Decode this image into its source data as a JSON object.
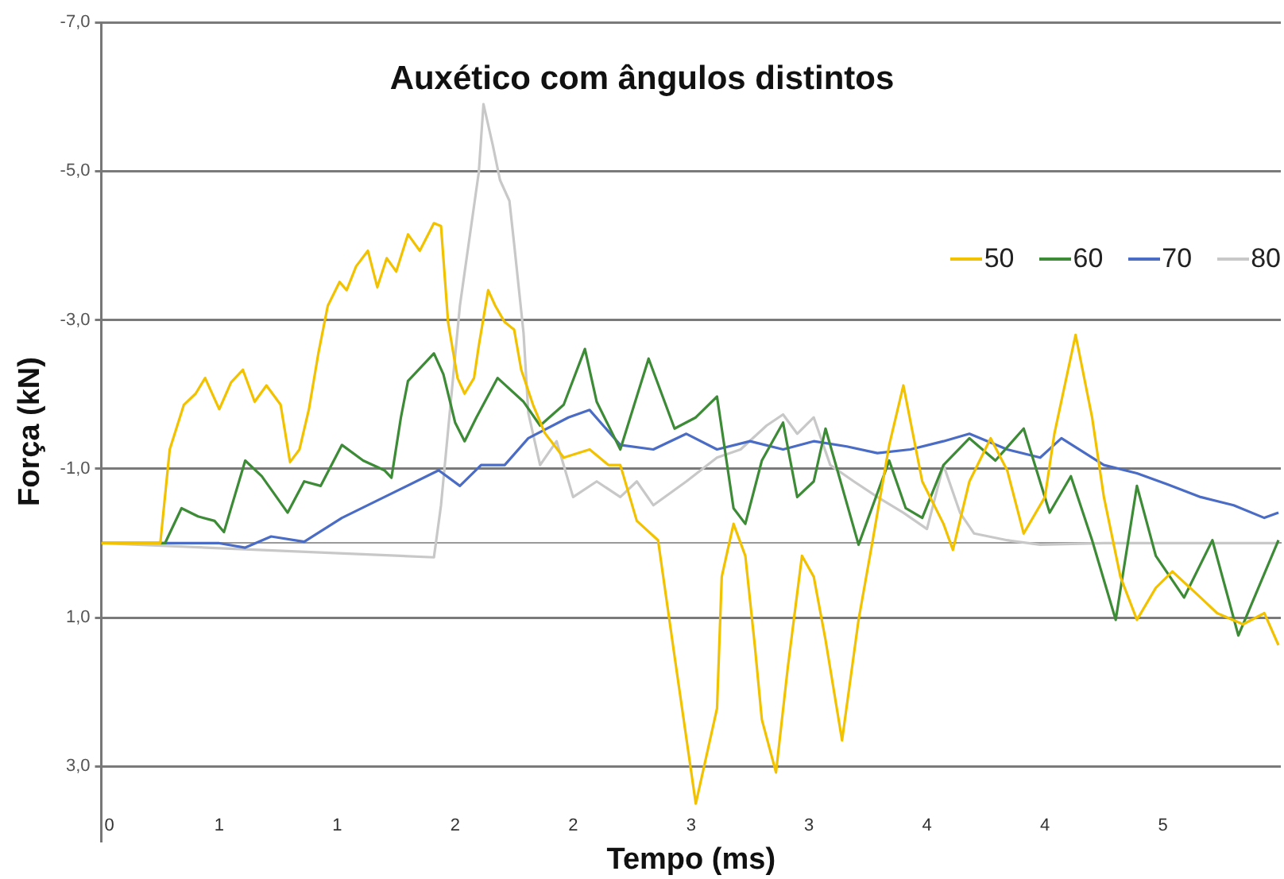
{
  "chart_data": {
    "type": "line",
    "title": "Auxético com ângulos distintos",
    "xlabel": "Tempo (ms)",
    "ylabel": "Força (kN)",
    "xlim": [
      0,
      5
    ],
    "xticks": [
      {
        "value": 0,
        "label": "0"
      },
      {
        "value": 0.5,
        "label": "1"
      },
      {
        "value": 1,
        "label": "1"
      },
      {
        "value": 1.5,
        "label": "2"
      },
      {
        "value": 2,
        "label": "2"
      },
      {
        "value": 2.5,
        "label": "3"
      },
      {
        "value": 3,
        "label": "3"
      },
      {
        "value": 3.5,
        "label": "4"
      },
      {
        "value": 4,
        "label": "4"
      },
      {
        "value": 4.5,
        "label": "5"
      }
    ],
    "ylim": [
      4,
      -7
    ],
    "yticks": [
      {
        "value": -7,
        "label": "-7,0"
      },
      {
        "value": -5,
        "label": "-5,0"
      },
      {
        "value": -3,
        "label": "-3,0"
      },
      {
        "value": -1,
        "label": "-1,0"
      },
      {
        "value": 1,
        "label": "1,0"
      },
      {
        "value": 3,
        "label": "3,0"
      }
    ],
    "grid": "y",
    "legend": "top right",
    "marker": "none",
    "line_style": "solid",
    "series": [
      {
        "name": "50",
        "color": "#f2c200",
        "x": [
          0,
          0.25,
          0.29,
          0.35,
          0.4,
          0.44,
          0.5,
          0.55,
          0.6,
          0.65,
          0.7,
          0.76,
          0.8,
          0.84,
          0.88,
          0.92,
          0.96,
          1.01,
          1.04,
          1.08,
          1.13,
          1.17,
          1.21,
          1.25,
          1.3,
          1.35,
          1.41,
          1.44,
          1.47,
          1.51,
          1.54,
          1.58,
          1.6,
          1.64,
          1.67,
          1.71,
          1.75,
          1.78,
          1.83,
          1.88,
          1.96,
          2.07,
          2.15,
          2.2,
          2.27,
          2.36,
          2.43,
          2.52,
          2.61,
          2.63,
          2.68,
          2.73,
          2.77,
          2.8,
          2.86,
          2.91,
          2.97,
          3.02,
          3.07,
          3.14,
          3.21,
          3.27,
          3.34,
          3.4,
          3.48,
          3.57,
          3.61,
          3.68,
          3.77,
          3.84,
          3.91,
          4.0,
          4.04,
          4.13,
          4.2,
          4.25,
          4.32,
          4.39,
          4.47,
          4.54,
          4.66,
          4.73,
          4.84,
          4.93,
          4.99
        ],
        "values": [
          0,
          0,
          -1.26,
          -1.86,
          -2.01,
          -2.22,
          -1.8,
          -2.16,
          -2.33,
          -1.9,
          -2.12,
          -1.86,
          -1.09,
          -1.26,
          -1.8,
          -2.55,
          -3.19,
          -3.51,
          -3.4,
          -3.72,
          -3.93,
          -3.44,
          -3.83,
          -3.65,
          -4.15,
          -3.93,
          -4.3,
          -4.26,
          -2.97,
          -2.22,
          -2.01,
          -2.22,
          -2.65,
          -3.4,
          -3.19,
          -2.97,
          -2.87,
          -2.33,
          -1.86,
          -1.48,
          -1.15,
          -1.26,
          -1.05,
          -1.05,
          -0.3,
          -0.04,
          1.52,
          3.5,
          2.22,
          0.45,
          -0.26,
          0.17,
          1.37,
          2.37,
          3.08,
          1.67,
          0.17,
          0.45,
          1.3,
          2.65,
          1.03,
          -0.04,
          -1.32,
          -2.12,
          -0.83,
          -0.26,
          0.09,
          -0.83,
          -1.41,
          -0.98,
          -0.13,
          -0.62,
          -1.47,
          -2.8,
          -1.69,
          -0.62,
          0.45,
          1.03,
          0.6,
          0.38,
          0.73,
          0.94,
          1.09,
          0.94,
          1.37
        ]
      },
      {
        "name": "60",
        "color": "#3d8b37",
        "x": [
          0,
          0.27,
          0.34,
          0.41,
          0.48,
          0.52,
          0.61,
          0.68,
          0.79,
          0.86,
          0.93,
          1.02,
          1.11,
          1.2,
          1.23,
          1.27,
          1.3,
          1.41,
          1.45,
          1.5,
          1.54,
          1.59,
          1.68,
          1.79,
          1.86,
          1.96,
          2.05,
          2.1,
          2.2,
          2.32,
          2.43,
          2.52,
          2.61,
          2.68,
          2.73,
          2.8,
          2.89,
          2.95,
          3.02,
          3.07,
          3.21,
          3.34,
          3.41,
          3.48,
          3.57,
          3.68,
          3.79,
          3.91,
          4.02,
          4.11,
          4.2,
          4.3,
          4.39,
          4.47,
          4.59,
          4.71,
          4.82,
          4.99
        ],
        "values": [
          0,
          0,
          -0.47,
          -0.36,
          -0.3,
          -0.15,
          -1.11,
          -0.9,
          -0.41,
          -0.83,
          -0.77,
          -1.32,
          -1.11,
          -0.98,
          -0.88,
          -1.69,
          -2.18,
          -2.55,
          -2.27,
          -1.62,
          -1.37,
          -1.69,
          -2.22,
          -1.9,
          -1.58,
          -1.86,
          -2.61,
          -1.9,
          -1.26,
          -2.48,
          -1.54,
          -1.69,
          -1.97,
          -0.47,
          -0.26,
          -1.11,
          -1.62,
          -0.62,
          -0.83,
          -1.54,
          0.02,
          -1.11,
          -0.47,
          -0.34,
          -1.05,
          -1.41,
          -1.11,
          -1.54,
          -0.41,
          -0.9,
          -0.04,
          1.03,
          -0.77,
          0.17,
          0.73,
          -0.04,
          1.24,
          -0.04
        ]
      },
      {
        "name": "70",
        "color": "#4a6cc4",
        "x": [
          0,
          0.5,
          0.61,
          0.72,
          0.86,
          1.02,
          1.2,
          1.43,
          1.52,
          1.61,
          1.71,
          1.81,
          1.98,
          2.07,
          2.2,
          2.34,
          2.48,
          2.61,
          2.75,
          2.89,
          3.02,
          3.16,
          3.29,
          3.43,
          3.57,
          3.68,
          3.84,
          3.98,
          4.07,
          4.25,
          4.39,
          4.52,
          4.66,
          4.8,
          4.93,
          4.99
        ],
        "values": [
          0,
          0,
          0.06,
          -0.09,
          -0.02,
          -0.34,
          -0.62,
          -0.98,
          -0.77,
          -1.05,
          -1.05,
          -1.41,
          -1.69,
          -1.79,
          -1.32,
          -1.26,
          -1.47,
          -1.26,
          -1.37,
          -1.26,
          -1.37,
          -1.3,
          -1.21,
          -1.26,
          -1.37,
          -1.47,
          -1.26,
          -1.15,
          -1.41,
          -1.05,
          -0.94,
          -0.79,
          -0.62,
          -0.51,
          -0.34,
          -0.41
        ]
      },
      {
        "name": "80",
        "color": "#c8c8c8",
        "x": [
          0,
          1.41,
          1.44,
          1.52,
          1.6,
          1.62,
          1.66,
          1.69,
          1.73,
          1.75,
          1.79,
          1.81,
          1.86,
          1.93,
          2.0,
          2.1,
          2.2,
          2.27,
          2.34,
          2.48,
          2.61,
          2.71,
          2.82,
          2.89,
          2.95,
          3.02,
          3.09,
          3.19,
          3.29,
          3.4,
          3.5,
          3.57,
          3.64,
          3.7,
          3.84,
          3.98,
          4.25,
          4.99
        ],
        "values": [
          0,
          0.19,
          -0.51,
          -3.19,
          -4.98,
          -5.9,
          -5.34,
          -4.88,
          -4.6,
          -4.02,
          -2.82,
          -1.75,
          -1.05,
          -1.37,
          -0.62,
          -0.83,
          -0.62,
          -0.83,
          -0.51,
          -0.83,
          -1.15,
          -1.26,
          -1.58,
          -1.73,
          -1.47,
          -1.69,
          -1.05,
          -0.83,
          -0.62,
          -0.41,
          -0.19,
          -1.05,
          -0.41,
          -0.13,
          -0.04,
          0.02,
          0,
          0
        ]
      }
    ]
  }
}
